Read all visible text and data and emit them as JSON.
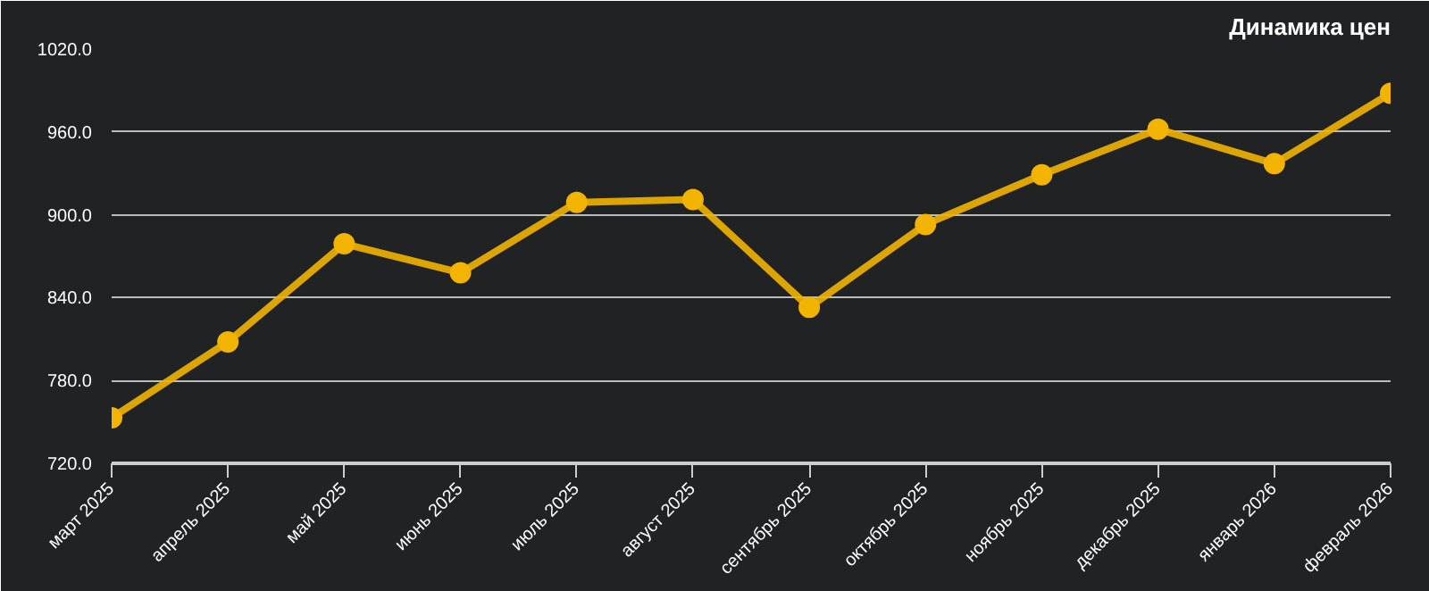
{
  "chart_data": {
    "type": "line",
    "title": "Динамика цен",
    "categories": [
      "март 2025",
      "апрель 2025",
      "май 2025",
      "июнь 2025",
      "июль 2025",
      "август 2025",
      "сентябрь 2025",
      "октябрь 2025",
      "ноябрь 2025",
      "декабрь 2025",
      "январь 2026",
      "февраль 2026"
    ],
    "series": [
      {
        "color": "#f2b400",
        "values": [
          753,
          808,
          879,
          858,
          909,
          911,
          833,
          893,
          929,
          962,
          937,
          988
        ]
      }
    ],
    "ylim": [
      720,
      1020
    ],
    "yticks": [
      {
        "value": 720,
        "label": "720.0"
      },
      {
        "value": 780,
        "label": "780.0"
      },
      {
        "value": 840,
        "label": "840.0"
      },
      {
        "value": 900,
        "label": "900.0"
      },
      {
        "value": 960,
        "label": "960.0"
      },
      {
        "value": 1020,
        "label": "1020.0"
      }
    ],
    "grid": "y",
    "marker": "circle",
    "line_style": "solid"
  }
}
